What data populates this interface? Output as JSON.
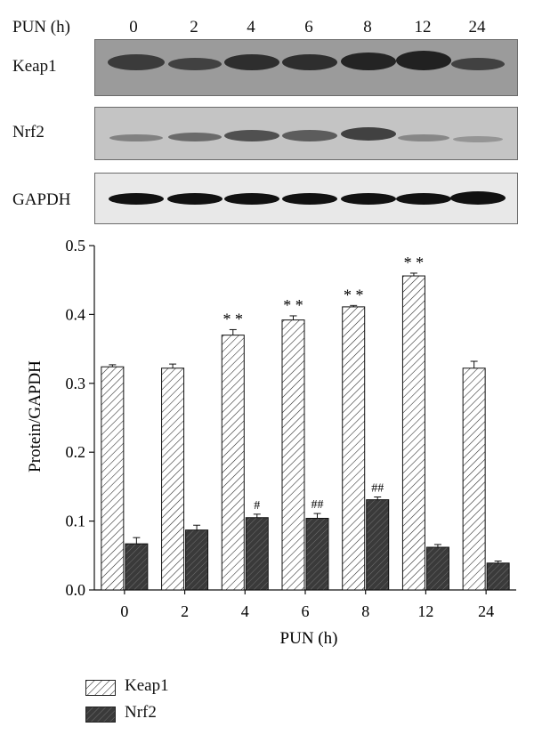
{
  "blot": {
    "header_label": "PUN (h)",
    "timepoints": [
      "0",
      "2",
      "4",
      "6",
      "8",
      "12",
      "24"
    ],
    "rows": [
      {
        "label": "Keap1"
      },
      {
        "label": "Nrf2"
      },
      {
        "label": "GAPDH"
      }
    ]
  },
  "chart_data": {
    "type": "bar",
    "categories": [
      "0",
      "2",
      "4",
      "6",
      "8",
      "12",
      "24"
    ],
    "series": [
      {
        "name": "Keap1",
        "values": [
          0.324,
          0.322,
          0.37,
          0.392,
          0.411,
          0.456,
          0.322
        ],
        "errors": [
          0.003,
          0.006,
          0.008,
          0.006,
          0.002,
          0.004,
          0.01
        ],
        "annotations": [
          "",
          "",
          "**",
          "**",
          "**",
          "**",
          ""
        ],
        "pattern": "hatched",
        "color": "#ffffff"
      },
      {
        "name": "Nrf2",
        "values": [
          0.067,
          0.087,
          0.105,
          0.104,
          0.131,
          0.062,
          0.039
        ],
        "errors": [
          0.009,
          0.007,
          0.005,
          0.007,
          0.004,
          0.004,
          0.003
        ],
        "annotations": [
          "",
          "",
          "#",
          "##",
          "##",
          "",
          ""
        ],
        "pattern": "dark-hatched",
        "color": "#3a3a3a"
      }
    ],
    "xlabel": "PUN (h)",
    "ylabel": "Protein/GAPDH",
    "ylim": [
      0.0,
      0.5
    ],
    "yticks": [
      "0.0",
      "0.1",
      "0.2",
      "0.3",
      "0.4",
      "0.5"
    ],
    "grid": false,
    "legend_position": "bottom-left"
  }
}
